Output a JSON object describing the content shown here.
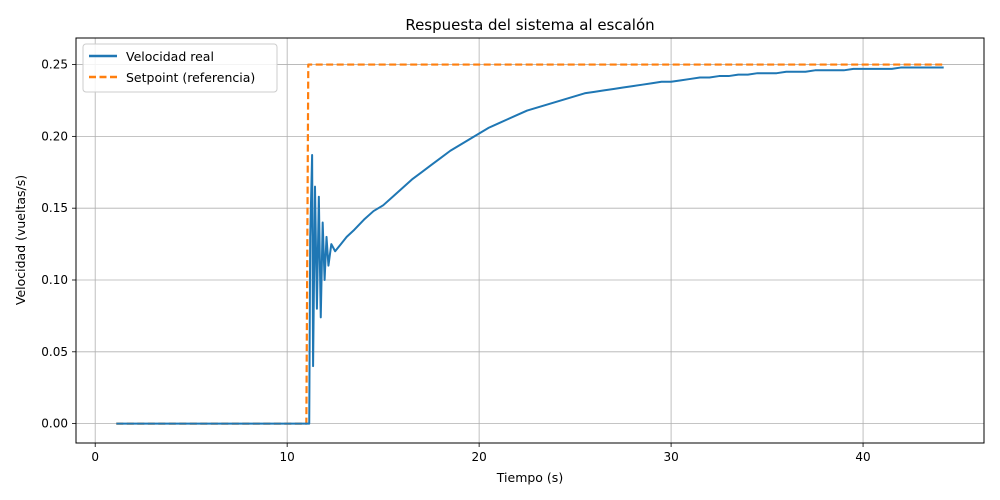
{
  "chart_data": {
    "type": "line",
    "title": "Respuesta del sistema al escalón",
    "xlabel": "Tiempo (s)",
    "ylabel": "Velocidad (vueltas/s)",
    "xlim": [
      -1.0,
      46.3
    ],
    "ylim": [
      -0.0135,
      0.2685
    ],
    "xticks": [
      0,
      10,
      20,
      30,
      40
    ],
    "xtick_labels": [
      "0",
      "10",
      "20",
      "30",
      "40"
    ],
    "yticks": [
      0.0,
      0.05,
      0.1,
      0.15,
      0.2,
      0.25
    ],
    "ytick_labels": [
      "0.00",
      "0.05",
      "0.10",
      "0.15",
      "0.20",
      "0.25"
    ],
    "grid": true,
    "legend_position": "top-left",
    "colors": {
      "real": "#1f77b4",
      "setpoint": "#ff7f0e"
    },
    "series": [
      {
        "name": "Velocidad real",
        "style": "solid",
        "points": [
          [
            1.1,
            0.0
          ],
          [
            11.0,
            0.0
          ],
          [
            11.15,
            0.0
          ],
          [
            11.2,
            0.13
          ],
          [
            11.3,
            0.187
          ],
          [
            11.35,
            0.04
          ],
          [
            11.45,
            0.165
          ],
          [
            11.55,
            0.08
          ],
          [
            11.65,
            0.158
          ],
          [
            11.75,
            0.074
          ],
          [
            11.85,
            0.14
          ],
          [
            11.95,
            0.1
          ],
          [
            12.05,
            0.13
          ],
          [
            12.15,
            0.11
          ],
          [
            12.3,
            0.125
          ],
          [
            12.5,
            0.12
          ],
          [
            12.8,
            0.125
          ],
          [
            13.1,
            0.13
          ],
          [
            13.5,
            0.135
          ],
          [
            14.0,
            0.142
          ],
          [
            14.5,
            0.148
          ],
          [
            15.0,
            0.152
          ],
          [
            15.5,
            0.158
          ],
          [
            16.0,
            0.164
          ],
          [
            16.5,
            0.17
          ],
          [
            17.0,
            0.175
          ],
          [
            17.5,
            0.18
          ],
          [
            18.0,
            0.185
          ],
          [
            18.5,
            0.19
          ],
          [
            19.0,
            0.194
          ],
          [
            19.5,
            0.198
          ],
          [
            20.0,
            0.202
          ],
          [
            20.5,
            0.206
          ],
          [
            21.0,
            0.209
          ],
          [
            21.5,
            0.212
          ],
          [
            22.0,
            0.215
          ],
          [
            22.5,
            0.218
          ],
          [
            23.0,
            0.22
          ],
          [
            23.5,
            0.222
          ],
          [
            24.0,
            0.224
          ],
          [
            24.5,
            0.226
          ],
          [
            25.0,
            0.228
          ],
          [
            25.5,
            0.23
          ],
          [
            26.0,
            0.231
          ],
          [
            26.5,
            0.232
          ],
          [
            27.0,
            0.233
          ],
          [
            27.5,
            0.234
          ],
          [
            28.0,
            0.235
          ],
          [
            28.5,
            0.236
          ],
          [
            29.0,
            0.237
          ],
          [
            29.5,
            0.238
          ],
          [
            30.0,
            0.238
          ],
          [
            30.5,
            0.239
          ],
          [
            31.0,
            0.24
          ],
          [
            31.5,
            0.241
          ],
          [
            32.0,
            0.241
          ],
          [
            32.5,
            0.242
          ],
          [
            33.0,
            0.242
          ],
          [
            33.5,
            0.243
          ],
          [
            34.0,
            0.243
          ],
          [
            34.5,
            0.244
          ],
          [
            35.0,
            0.244
          ],
          [
            35.5,
            0.244
          ],
          [
            36.0,
            0.245
          ],
          [
            36.5,
            0.245
          ],
          [
            37.0,
            0.245
          ],
          [
            37.5,
            0.246
          ],
          [
            38.0,
            0.246
          ],
          [
            38.5,
            0.246
          ],
          [
            39.0,
            0.246
          ],
          [
            39.5,
            0.247
          ],
          [
            40.0,
            0.247
          ],
          [
            40.5,
            0.247
          ],
          [
            41.0,
            0.247
          ],
          [
            41.5,
            0.247
          ],
          [
            42.0,
            0.248
          ],
          [
            42.5,
            0.248
          ],
          [
            43.0,
            0.248
          ],
          [
            43.5,
            0.248
          ],
          [
            44.2,
            0.248
          ]
        ]
      },
      {
        "name": "Setpoint (referencia)",
        "style": "dashed",
        "points": [
          [
            1.1,
            0.0
          ],
          [
            11.0,
            0.0
          ],
          [
            11.1,
            0.25
          ],
          [
            44.2,
            0.25
          ]
        ]
      }
    ]
  }
}
